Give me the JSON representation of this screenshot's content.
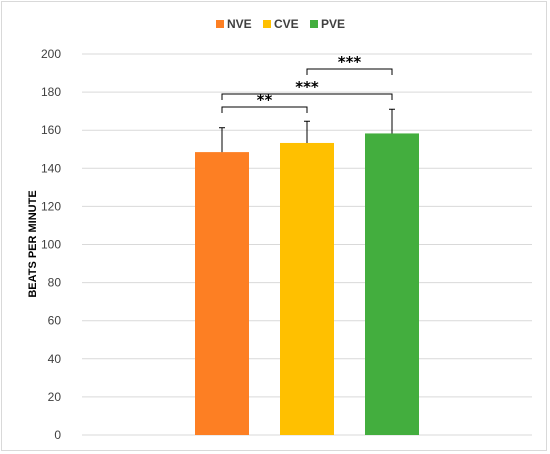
{
  "chart_data": {
    "type": "bar",
    "categories": [
      "NVE",
      "CVE",
      "PVE"
    ],
    "series": [
      {
        "name": "",
        "values": [
          148.5,
          153.3,
          158.3
        ],
        "errors": [
          12.8,
          11.4,
          12.7
        ],
        "colors": [
          "#fd7f23",
          "#ffc000",
          "#43ae3e"
        ]
      }
    ],
    "title": "",
    "xlabel": "",
    "ylabel": "BEATS PER MINUTE",
    "ylim": [
      0,
      200
    ],
    "yticks": [
      0,
      20,
      40,
      60,
      80,
      100,
      120,
      140,
      160,
      180,
      200
    ],
    "grid": true,
    "legend": {
      "placement": "top-center",
      "entries": [
        "NVE",
        "CVE",
        "PVE"
      ]
    },
    "significance": [
      {
        "from": "NVE",
        "to": "CVE",
        "label": "**"
      },
      {
        "from": "NVE",
        "to": "PVE",
        "label": "***"
      },
      {
        "from": "CVE",
        "to": "PVE",
        "label": "***"
      }
    ]
  }
}
